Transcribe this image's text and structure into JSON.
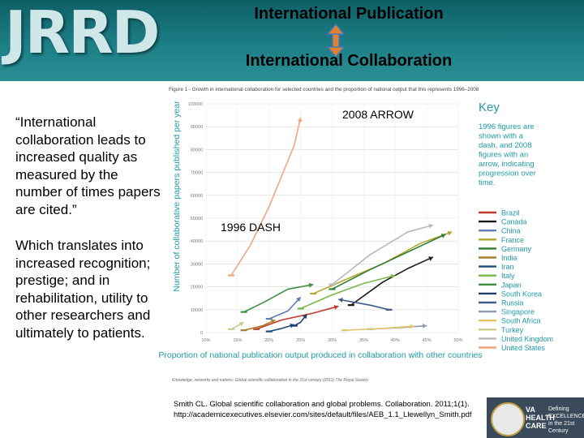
{
  "header": {
    "logo_text": "JRRD",
    "title_line1": "International Publication",
    "title_line2": "International Collaboration"
  },
  "slide_text": {
    "quote": "“International collaboration leads to increased quality as measured by the number of times papers are cited.”",
    "description": "Which translates into increased recognition; prestige; and in rehabilitation, utility to other researchers and ultimately to patients."
  },
  "annotations": {
    "arrow_2008": "2008 ARROW",
    "dash_1996": "1996 DASH"
  },
  "figure": {
    "caption": "Figure 1 - Growth in international collaboration for selected countries and the proportion of national output that this represents 1996–2008",
    "source": "Knowledge, networks and nations: Global scientific collaboration in the 21st century (2011) The Royal Society",
    "key_title": "Key",
    "key_text": "1996 figures are shown with a dash, and 2008 figures with an arrow, indicating progression over time."
  },
  "chart_data": {
    "type": "line",
    "xlabel": "Proportion of national publication output produced in collaboration with other countries",
    "ylabel": "Number of collaborative papers published per year",
    "xlim": [
      10,
      50
    ],
    "ylim": [
      0,
      100000
    ],
    "x_ticks": [
      "10%",
      "15%",
      "20%",
      "25%",
      "30%",
      "35%",
      "40%",
      "45%",
      "50%"
    ],
    "y_ticks": [
      "0",
      "10000",
      "20000",
      "30000",
      "40000",
      "50000",
      "60000",
      "70000",
      "80000",
      "90000",
      "100000"
    ],
    "series": [
      {
        "name": "Brazil",
        "color": "#c0392b",
        "points": [
          [
            18.0,
            1500
          ],
          [
            22.0,
            5500
          ],
          [
            27.0,
            8500
          ],
          [
            31.0,
            11500
          ]
        ]
      },
      {
        "name": "Canada",
        "color": "#1a1a1a",
        "points": [
          [
            33.0,
            12000
          ],
          [
            38.0,
            22000
          ],
          [
            42.0,
            28000
          ],
          [
            46.0,
            33000
          ]
        ]
      },
      {
        "name": "China",
        "color": "#5b7db1",
        "points": [
          [
            20.0,
            6000
          ],
          [
            23.0,
            9500
          ],
          [
            25.0,
            15500
          ]
        ]
      },
      {
        "name": "France",
        "color": "#b5a632",
        "points": [
          [
            27.0,
            17000
          ],
          [
            32.0,
            23000
          ],
          [
            38.0,
            30000
          ],
          [
            44.0,
            39000
          ],
          [
            49.0,
            44000
          ]
        ]
      },
      {
        "name": "Germany",
        "color": "#2e7d32",
        "points": [
          [
            30.0,
            19000
          ],
          [
            36.0,
            27500
          ],
          [
            43.0,
            36500
          ],
          [
            48.0,
            43000
          ]
        ]
      },
      {
        "name": "India",
        "color": "#a87f2a",
        "points": [
          [
            16.0,
            1000
          ],
          [
            19.0,
            3000
          ],
          [
            21.0,
            5500
          ]
        ]
      },
      {
        "name": "Iran",
        "color": "#1f4e79",
        "points": [
          [
            20.0,
            500
          ],
          [
            22.0,
            1800
          ],
          [
            24.0,
            3500
          ]
        ]
      },
      {
        "name": "Italy",
        "color": "#7ab648",
        "points": [
          [
            25.0,
            10500
          ],
          [
            30.0,
            16500
          ],
          [
            35.0,
            21500
          ],
          [
            40.0,
            25000
          ]
        ]
      },
      {
        "name": "Japan",
        "color": "#3f8f3f",
        "points": [
          [
            16.0,
            9000
          ],
          [
            19.0,
            13000
          ],
          [
            23.0,
            19000
          ],
          [
            27.0,
            21000
          ]
        ]
      },
      {
        "name": "South Korea",
        "color": "#1c3d6e",
        "points": [
          [
            24.0,
            3000
          ],
          [
            25.0,
            4500
          ],
          [
            26.0,
            8000
          ]
        ]
      },
      {
        "name": "Russia",
        "color": "#3d5a8a",
        "points": [
          [
            39.0,
            10000
          ],
          [
            36.0,
            12000
          ],
          [
            33.0,
            13500
          ],
          [
            31.0,
            14500
          ]
        ]
      },
      {
        "name": "Singapore",
        "color": "#8e9bb0",
        "points": [
          [
            36.0,
            1500
          ],
          [
            41.0,
            2200
          ],
          [
            45.0,
            3000
          ]
        ]
      },
      {
        "name": "South Africa",
        "color": "#e3c66a",
        "points": [
          [
            32.0,
            1000
          ],
          [
            38.0,
            1800
          ],
          [
            43.0,
            2800
          ]
        ]
      },
      {
        "name": "Turkey",
        "color": "#c8cc88",
        "points": [
          [
            14.0,
            1500
          ],
          [
            15.0,
            3000
          ],
          [
            16.0,
            4500
          ]
        ]
      },
      {
        "name": "United Kingdom",
        "color": "#b8b8b8",
        "points": [
          [
            30.0,
            21000
          ],
          [
            36.0,
            34000
          ],
          [
            42.0,
            44000
          ],
          [
            46.0,
            47000
          ]
        ]
      },
      {
        "name": "United States",
        "color": "#f2a481",
        "points": [
          [
            14.0,
            25000
          ],
          [
            17.0,
            38000
          ],
          [
            20.0,
            55000
          ],
          [
            24.0,
            82000
          ],
          [
            25.0,
            94000
          ]
        ]
      }
    ]
  },
  "citation": {
    "line1": "Smith CL. Global scientific collaboration and global problems. Collaboration. 2011;1(1).",
    "line2": "http://academicexecutives.elsevier.com/sites/default/files/AEB_1.1_Llewellyn_Smith.pdf"
  },
  "footer": {
    "va_line1": "VA",
    "va_line2": "HEALTH",
    "va_line3": "CARE",
    "tagline": "Defining EXCELLENCE in the 21st Century"
  },
  "colors": {
    "header_teal": "#1d7f86",
    "key_accent": "#1f9aa8",
    "arrow_orange": "#e08030",
    "arrow_blue": "#4a78b8"
  }
}
